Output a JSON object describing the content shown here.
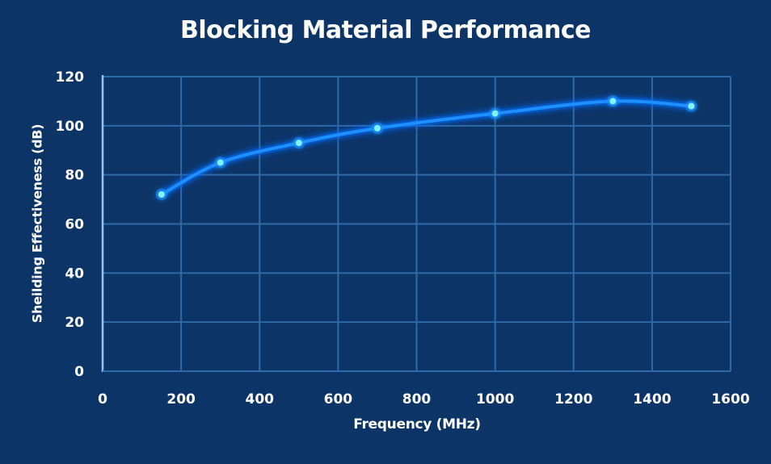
{
  "chart_data": {
    "type": "line",
    "title": "Blocking Material Performance",
    "xlabel": "Frequency (MHz)",
    "ylabel": "Sheilding Effectiveness (dB)",
    "xlim": [
      0,
      1600
    ],
    "ylim": [
      0,
      120
    ],
    "x_ticks": [
      0,
      200,
      400,
      600,
      800,
      1000,
      1200,
      1400,
      1600
    ],
    "y_ticks": [
      0,
      20,
      40,
      60,
      80,
      100,
      120
    ],
    "grid": true,
    "legend": null,
    "series": [
      {
        "name": "Shielding Effectiveness",
        "color": "#1e8fff",
        "marker_color": "#7ff3ff",
        "x": [
          150,
          300,
          500,
          700,
          1000,
          1300,
          1500
        ],
        "values": [
          72,
          85,
          93,
          99,
          105,
          110,
          108
        ]
      }
    ]
  },
  "colors": {
    "background": "#0c3466",
    "grid": "#2f6aa8",
    "axis": "#8fc4ff",
    "text": "#ffffff"
  }
}
